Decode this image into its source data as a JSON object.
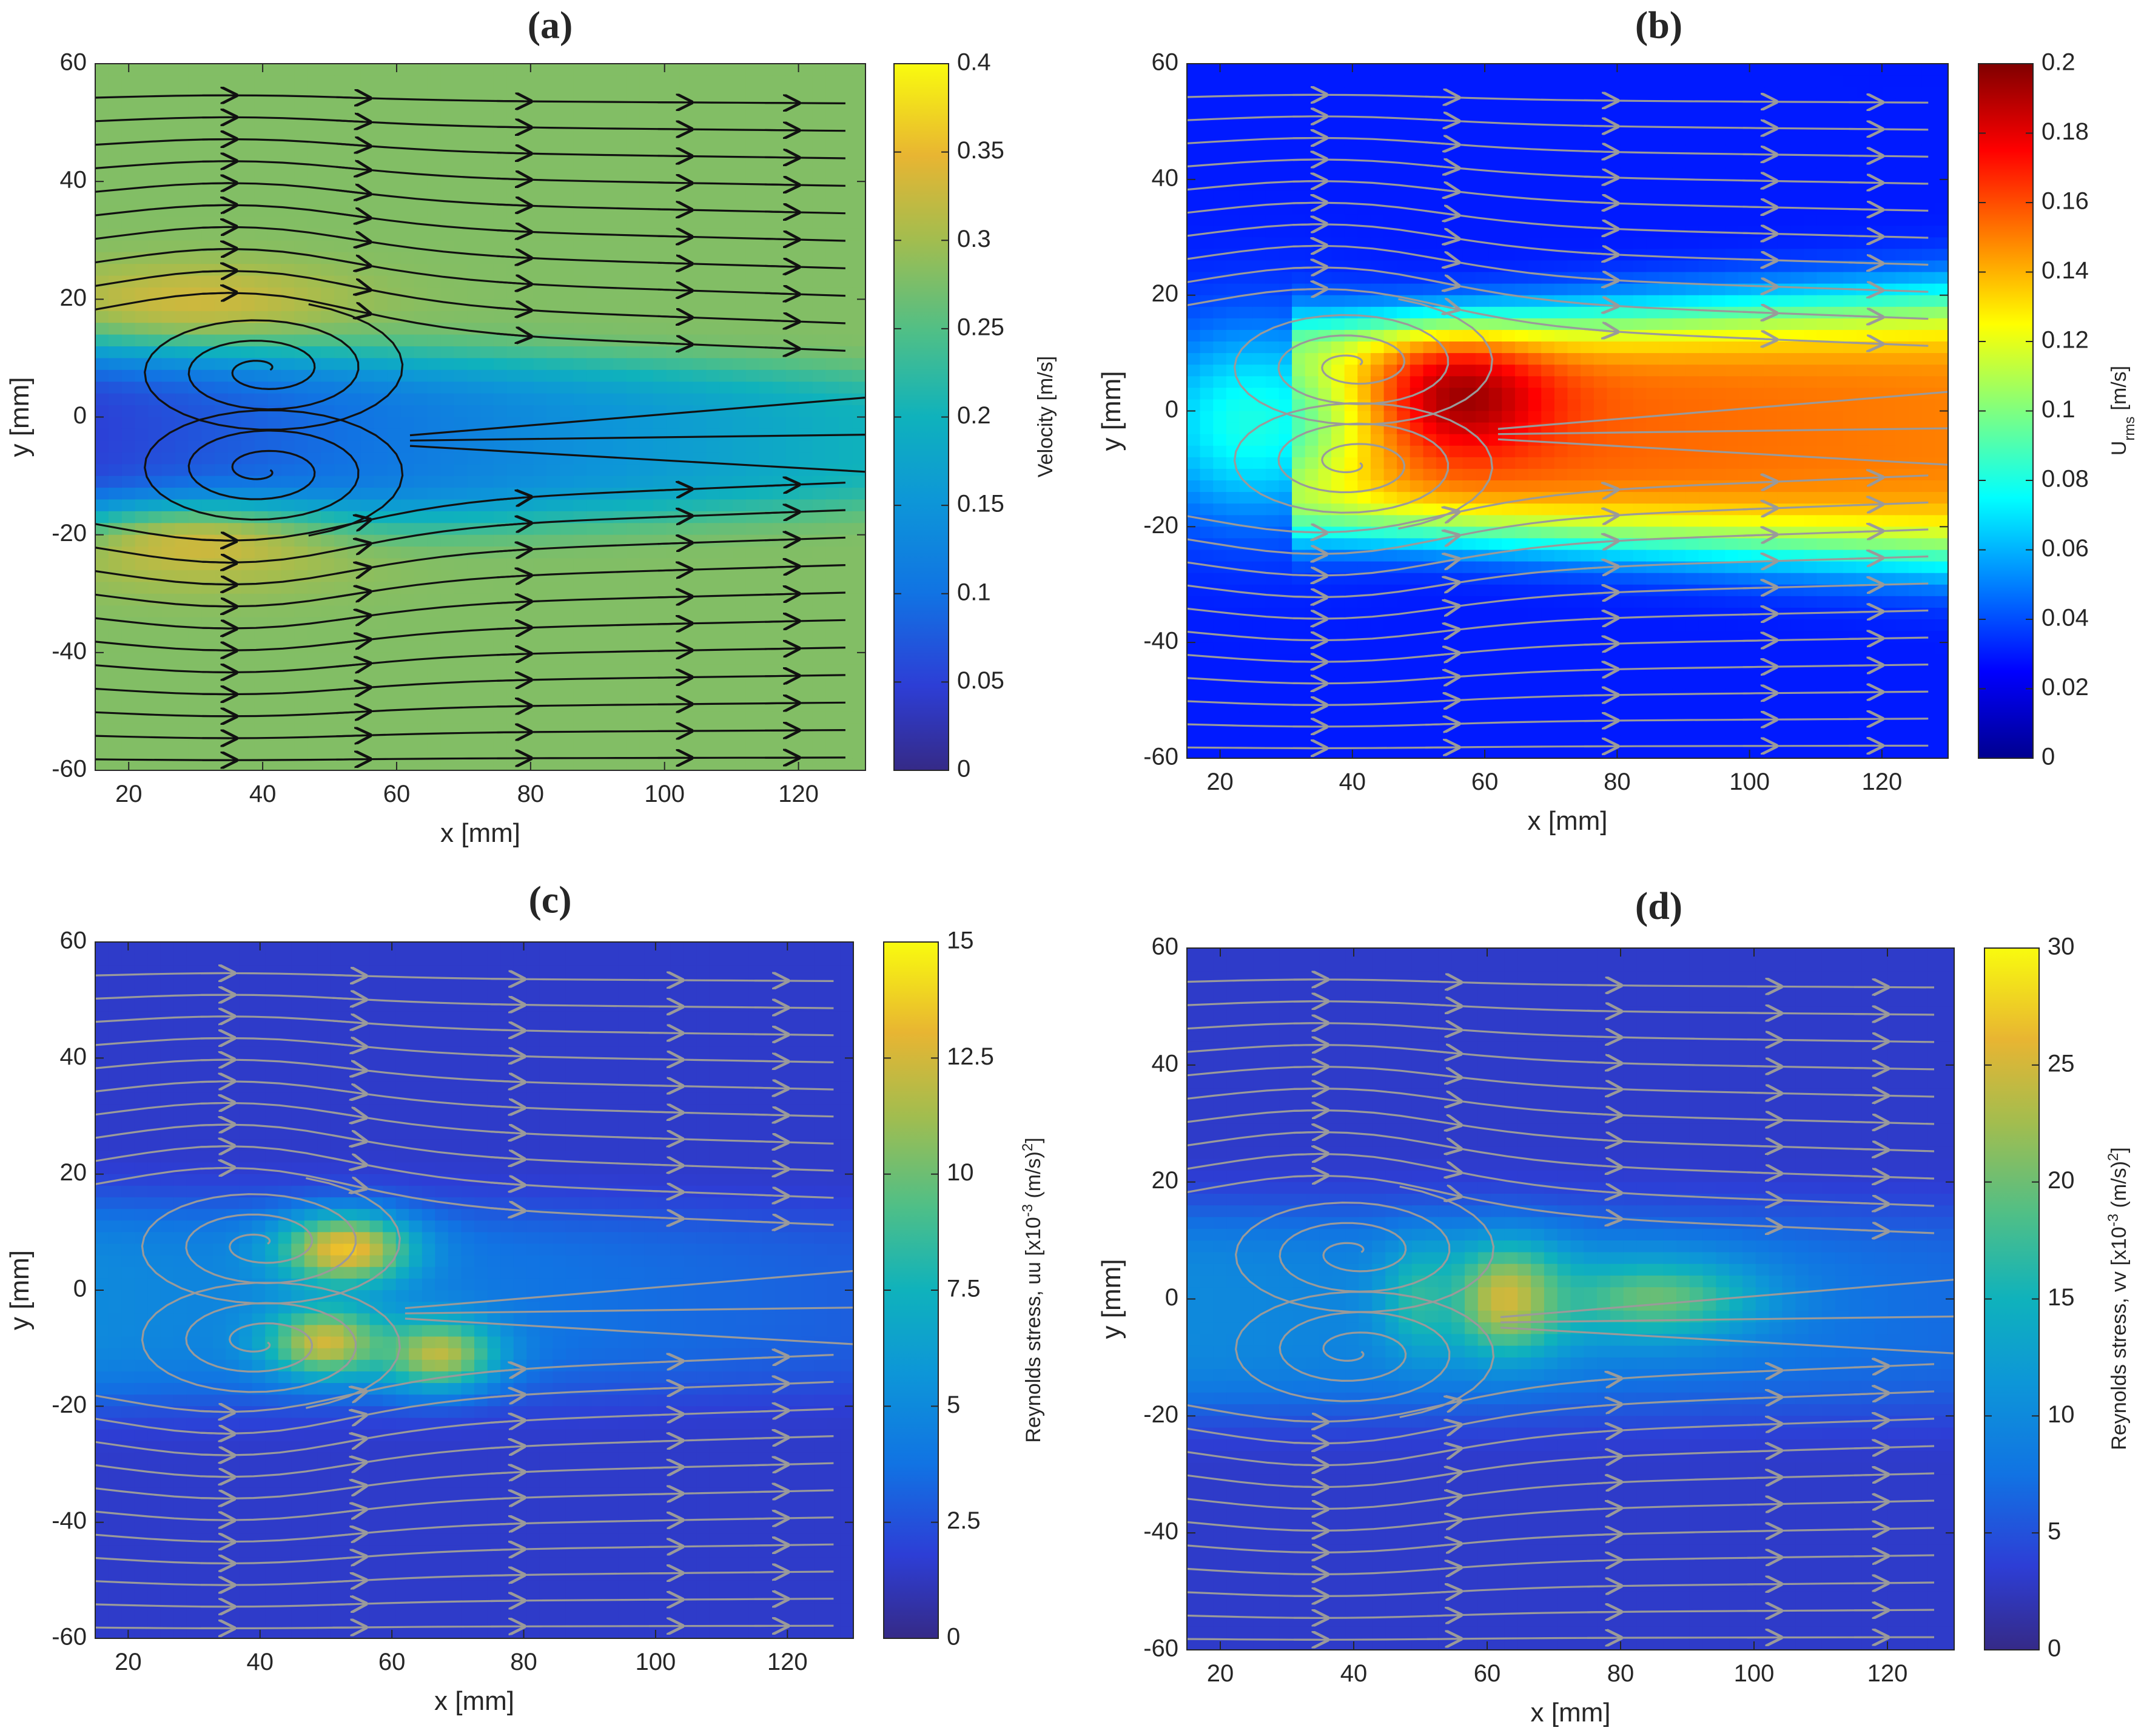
{
  "figure": {
    "type": "contour-streamline-grid",
    "layout": "2x2"
  },
  "chart_data": [
    {
      "type": "heatmap",
      "panel": "(a)",
      "title": "(a)",
      "xlabel": "x [mm]",
      "ylabel": "y [mm]",
      "xlim": [
        15,
        130
      ],
      "ylim": [
        -60,
        60
      ],
      "xticks": [
        20,
        40,
        60,
        80,
        100,
        120
      ],
      "yticks": [
        -60,
        -40,
        -20,
        0,
        20,
        40,
        60
      ],
      "colormap": "parula",
      "streamline_color": "#111111",
      "colorbar": {
        "label": "Velocity [m/s]",
        "range": [
          0,
          0.4
        ],
        "ticks": [
          0,
          0.05,
          0.1,
          0.15,
          0.2,
          0.25,
          0.3,
          0.35,
          0.4
        ],
        "tick_labels": [
          "0",
          "0.05",
          "0.1",
          "0.15",
          "0.2",
          "0.25",
          "0.3",
          "0.35",
          "0.4"
        ]
      },
      "field": {
        "background": 0.28,
        "features": [
          {
            "kind": "wake",
            "x0": 15,
            "x1": 130,
            "y": -4,
            "halfwidth_start": 17,
            "halfwidth_end": 12,
            "value_start": 0.05,
            "value_end": 0.2
          },
          {
            "kind": "blob",
            "x": 30,
            "y": 20,
            "sx": 22,
            "sy": 6,
            "value": 0.33
          },
          {
            "kind": "blob",
            "x": 30,
            "y": -22,
            "sx": 22,
            "sy": 7,
            "value": 0.33
          }
        ]
      },
      "vortices": [
        {
          "x": 40,
          "y": 8,
          "direction": "ccw"
        },
        {
          "x": 40,
          "y": -9,
          "direction": "cw"
        }
      ]
    },
    {
      "type": "heatmap",
      "panel": "(b)",
      "title": "(b)",
      "xlabel": "x [mm]",
      "ylabel": "y [mm]",
      "xlim": [
        15,
        130
      ],
      "ylim": [
        -60,
        60
      ],
      "xticks": [
        20,
        40,
        60,
        80,
        100,
        120
      ],
      "yticks": [
        -60,
        -40,
        -20,
        0,
        20,
        40,
        60
      ],
      "colormap": "jet",
      "streamline_color": "#9a9a9a",
      "colorbar": {
        "label": "U",
        "label_sub": "rms",
        "label_unit": "[m/s]",
        "range": [
          0,
          0.2
        ],
        "ticks": [
          0,
          0.02,
          0.04,
          0.06,
          0.08,
          0.1,
          0.12,
          0.14,
          0.16,
          0.18,
          0.2
        ],
        "tick_labels": [
          "0",
          "0.02",
          "0.04",
          "0.06",
          "0.08",
          "0.1",
          "0.12",
          "0.14",
          "0.16",
          "0.18",
          "0.2"
        ]
      },
      "field": {
        "background": 0.03,
        "features": [
          {
            "kind": "wake",
            "x0": 35,
            "x1": 130,
            "y": -3,
            "halfwidth_start": 18,
            "halfwidth_end": 24,
            "value_start": 0.16,
            "value_end": 0.15
          },
          {
            "kind": "blob",
            "x": 55,
            "y": 2,
            "sx": 14,
            "sy": 9,
            "value": 0.2
          },
          {
            "kind": "blob",
            "x": 25,
            "y": -2,
            "sx": 18,
            "sy": 17,
            "value": 0.08
          }
        ]
      },
      "vortices": [
        {
          "x": 40,
          "y": 8,
          "direction": "ccw"
        },
        {
          "x": 40,
          "y": -9,
          "direction": "cw"
        }
      ]
    },
    {
      "type": "heatmap",
      "panel": "(c)",
      "title": "(c)",
      "xlabel": "x [mm]",
      "ylabel": "y [mm]",
      "xlim": [
        15,
        130
      ],
      "ylim": [
        -60,
        60
      ],
      "xticks": [
        20,
        40,
        60,
        80,
        100,
        120
      ],
      "yticks": [
        -60,
        -40,
        -20,
        0,
        20,
        40,
        60
      ],
      "colormap": "parula",
      "streamline_color": "#9a9a9a",
      "colorbar": {
        "label": "Reynolds stress, uu [x10",
        "label_exp": "-3",
        "label_unit": " (m/s)",
        "label_exp2": "2",
        "label_end": "]",
        "range": [
          0,
          15
        ],
        "ticks": [
          0,
          2.5,
          5,
          7.5,
          10,
          12.5,
          15
        ],
        "tick_labels": [
          "0",
          "2.5",
          "5",
          "7.5",
          "10",
          "12.5",
          "15"
        ]
      },
      "field": {
        "background": 1.5,
        "features": [
          {
            "kind": "wake",
            "x0": 15,
            "x1": 130,
            "y": -2,
            "halfwidth_start": 18,
            "halfwidth_end": 16,
            "value_start": 5,
            "value_end": 3
          },
          {
            "kind": "blob",
            "x": 53,
            "y": 7,
            "sx": 10,
            "sy": 6,
            "value": 13.5
          },
          {
            "kind": "blob",
            "x": 50,
            "y": -9,
            "sx": 9,
            "sy": 6,
            "value": 12.5
          },
          {
            "kind": "blob",
            "x": 67,
            "y": -11,
            "sx": 9,
            "sy": 6,
            "value": 12
          }
        ]
      },
      "vortices": [
        {
          "x": 40,
          "y": 8,
          "direction": "ccw"
        },
        {
          "x": 40,
          "y": -9,
          "direction": "cw"
        }
      ]
    },
    {
      "type": "heatmap",
      "panel": "(d)",
      "title": "(d)",
      "xlabel": "x [mm]",
      "ylabel": "y [mm]",
      "xlim": [
        15,
        130
      ],
      "ylim": [
        -60,
        60
      ],
      "xticks": [
        20,
        40,
        60,
        80,
        100,
        120
      ],
      "yticks": [
        -60,
        -40,
        -20,
        0,
        20,
        40,
        60
      ],
      "colormap": "parula",
      "streamline_color": "#9a9a9a",
      "colorbar": {
        "label": "Reynolds stress, vv [x10",
        "label_exp": "-3",
        "label_unit": " (m/s)",
        "label_exp2": "2",
        "label_end": "]",
        "range": [
          0,
          30
        ],
        "ticks": [
          0,
          5,
          10,
          15,
          20,
          25,
          30
        ],
        "tick_labels": [
          "0",
          "5",
          "10",
          "15",
          "20",
          "25",
          "30"
        ]
      },
      "field": {
        "background": 3,
        "features": [
          {
            "kind": "wake",
            "x0": 15,
            "x1": 130,
            "y": -2,
            "halfwidth_start": 18,
            "halfwidth_end": 18,
            "value_start": 10,
            "value_end": 7
          },
          {
            "kind": "blob",
            "x": 63,
            "y": 0,
            "sx": 9,
            "sy": 9,
            "value": 26
          },
          {
            "kind": "blob",
            "x": 85,
            "y": 0,
            "sx": 16,
            "sy": 7,
            "value": 20
          },
          {
            "kind": "blob",
            "x": 50,
            "y": 0,
            "sx": 6,
            "sy": 9,
            "value": 17
          }
        ]
      },
      "vortices": [
        {
          "x": 40,
          "y": 8,
          "direction": "ccw"
        },
        {
          "x": 40,
          "y": -9,
          "direction": "cw"
        }
      ]
    }
  ]
}
